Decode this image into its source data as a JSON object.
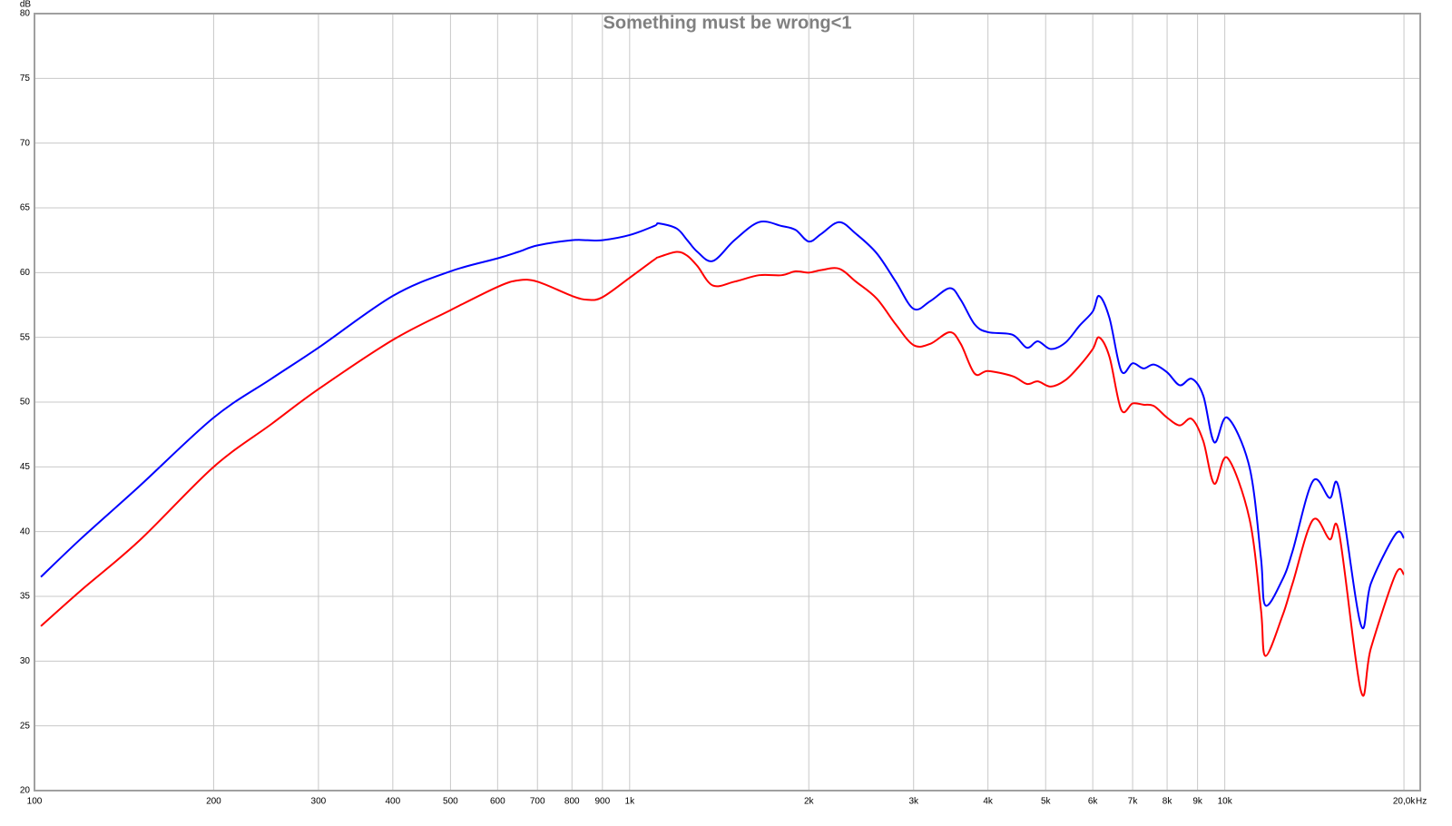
{
  "chart_data": {
    "type": "line",
    "title": "Something must be wrong<1",
    "y_label": "dB",
    "x_label": "Hz",
    "log_x": true,
    "grid": true,
    "xlim": [
      100,
      21300
    ],
    "ylim": [
      20,
      80
    ],
    "xticks": [
      100,
      200,
      300,
      400,
      500,
      600,
      700,
      800,
      900,
      {
        "value": 1000,
        "label": "1k"
      },
      {
        "value": 2000,
        "label": "2k"
      },
      {
        "value": 3000,
        "label": "3k"
      },
      {
        "value": 4000,
        "label": "4k"
      },
      {
        "value": 5000,
        "label": "5k"
      },
      {
        "value": 6000,
        "label": "6k"
      },
      {
        "value": 7000,
        "label": "7k"
      },
      {
        "value": 8000,
        "label": "8k"
      },
      {
        "value": 9000,
        "label": "9k"
      },
      {
        "value": 10000,
        "label": "10k"
      },
      {
        "value": 20000,
        "label": "20,0k"
      }
    ],
    "yticks": [
      20,
      25,
      30,
      35,
      40,
      45,
      50,
      55,
      60,
      65,
      70,
      75,
      80
    ],
    "x": [
      102.5,
      120,
      150,
      200,
      250,
      300,
      400,
      500,
      600,
      650,
      700,
      800,
      850,
      900,
      1000,
      1100,
      1120,
      1200,
      1250,
      1300,
      1380,
      1500,
      1650,
      1800,
      1900,
      2000,
      2100,
      2250,
      2400,
      2600,
      2800,
      3000,
      3200,
      3450,
      3600,
      3800,
      4000,
      4400,
      4650,
      4850,
      5100,
      5400,
      5700,
      6000,
      6150,
      6400,
      6700,
      7000,
      7300,
      7600,
      8000,
      8400,
      8800,
      9200,
      9600,
      10100,
      11000,
      11500,
      11700,
      12500,
      13000,
      14060,
      15000,
      15560,
      16930,
      17600,
      19360,
      20000
    ],
    "series": [
      {
        "color": "#0000ff",
        "values": [
          36.5,
          39.5,
          43.5,
          48.8,
          51.8,
          54.2,
          58.2,
          60.1,
          61.1,
          61.6,
          62.1,
          62.5,
          62.5,
          62.5,
          62.9,
          63.6,
          63.8,
          63.4,
          62.5,
          61.6,
          60.9,
          62.5,
          63.9,
          63.6,
          63.3,
          62.4,
          63.0,
          63.9,
          63.0,
          61.5,
          59.3,
          57.2,
          57.8,
          58.8,
          57.9,
          56.0,
          55.4,
          55.2,
          54.2,
          54.7,
          54.1,
          54.6,
          55.9,
          57.0,
          58.2,
          56.5,
          52.4,
          53.0,
          52.6,
          52.9,
          52.3,
          51.3,
          51.8,
          50.5,
          46.9,
          48.8,
          45.0,
          38.0,
          34.3,
          36.3,
          38.5,
          43.9,
          42.6,
          43.3,
          32.8,
          36.0,
          39.8,
          39.5
        ]
      },
      {
        "color": "#ff0000",
        "values": [
          32.7,
          35.5,
          39.3,
          45.0,
          48.3,
          51.0,
          54.8,
          57.1,
          58.9,
          59.4,
          59.3,
          58.2,
          57.9,
          58.1,
          59.6,
          61.0,
          61.2,
          61.6,
          61.3,
          60.5,
          59.0,
          59.3,
          59.8,
          59.8,
          60.1,
          60.0,
          60.2,
          60.3,
          59.3,
          58.0,
          56.0,
          54.4,
          54.5,
          55.4,
          54.5,
          52.2,
          52.4,
          52.0,
          51.4,
          51.6,
          51.2,
          51.7,
          52.8,
          54.1,
          55.0,
          53.5,
          49.4,
          49.9,
          49.8,
          49.7,
          48.8,
          48.2,
          48.7,
          47.0,
          43.7,
          45.7,
          41.0,
          34.0,
          30.4,
          33.5,
          36.0,
          40.9,
          39.4,
          39.9,
          27.7,
          31.0,
          36.7,
          36.7
        ]
      }
    ]
  }
}
